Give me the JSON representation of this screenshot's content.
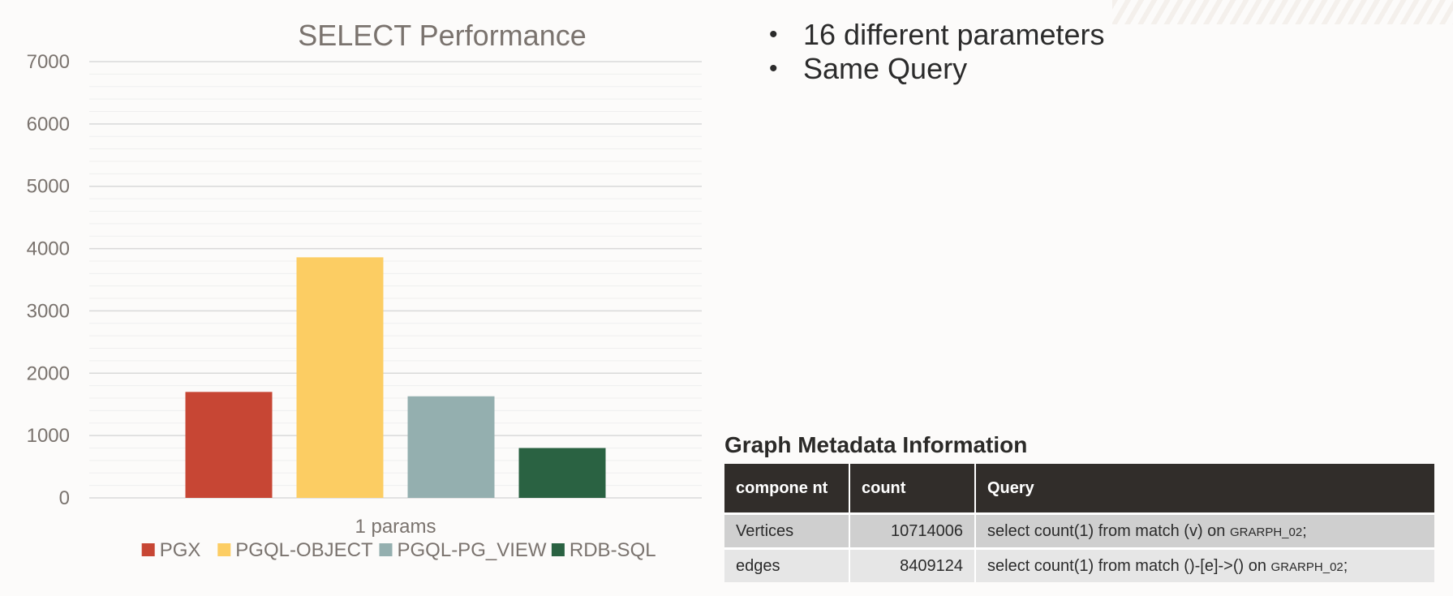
{
  "chart_data": {
    "type": "bar",
    "title": "SELECT Performance",
    "categories": [
      "1 params"
    ],
    "series": [
      {
        "name": "PGX",
        "values": [
          1700
        ],
        "color": "#c74634"
      },
      {
        "name": "PGQL-OBJECT",
        "values": [
          3860
        ],
        "color": "#fccd63"
      },
      {
        "name": "PGQL-PG_VIEW",
        "values": [
          1630
        ],
        "color": "#94afaf"
      },
      {
        "name": "RDB-SQL",
        "values": [
          800
        ],
        "color": "#2a6242"
      }
    ],
    "y_ticks": [
      "0",
      "1000",
      "2000",
      "3000",
      "4000",
      "5000",
      "6000",
      "7000"
    ],
    "ylim": [
      0,
      7000
    ],
    "grid": true,
    "legend_position": "bottom"
  },
  "bullets": [
    {
      "marker": "•",
      "text": "16 different parameters"
    },
    {
      "marker": "•",
      "text": "Same Query"
    }
  ],
  "table": {
    "title": "Graph Metadata Information",
    "headers": [
      "compone nt",
      "count",
      "Query"
    ],
    "rows": [
      {
        "component": "Vertices",
        "count": "10714006",
        "query_main": "select count(1) from match (v) on ",
        "query_graph": "GRARPH_02",
        "query_end": ";"
      },
      {
        "component": "edges",
        "count": "8409124",
        "query_main": "select count(1) from match ()-[e]->()  on ",
        "query_graph": "GRARPH_02",
        "query_end": ";"
      }
    ]
  },
  "colors": {
    "axis_text": "#7a736e",
    "grid_major": "#d9d9d9",
    "grid_minor": "#efefef",
    "header_bg": "#312d2a"
  }
}
